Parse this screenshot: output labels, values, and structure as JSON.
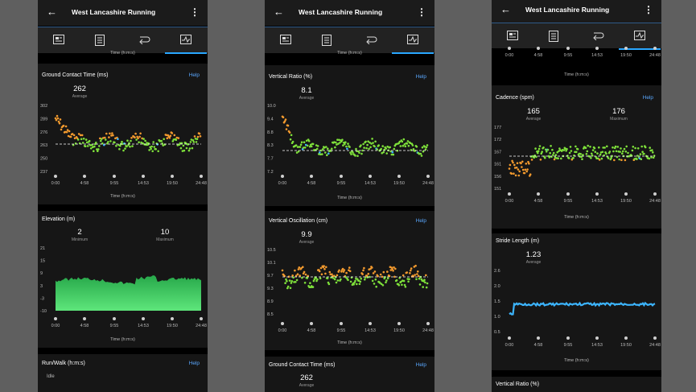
{
  "app": {
    "title": "West Lancashire Running",
    "back_icon": "back-arrow-icon",
    "more_icon": "more-vert-icon",
    "help_label": "Help",
    "tabs": [
      "tab-summary",
      "tab-splits",
      "tab-laps",
      "tab-charts"
    ],
    "accent": "#29a7ff"
  },
  "x_axis_label": "Time (h:m:s)",
  "x_ticks": [
    "0:00",
    "4:58",
    "9:55",
    "14:53",
    "19:50",
    "24:48"
  ],
  "phone1": {
    "ground_contact": {
      "title": "Ground Contact Time (ms)",
      "value": "262",
      "label": "Average",
      "y_ticks": [
        "302",
        "289",
        "276",
        "263",
        "250",
        "237"
      ]
    },
    "elevation": {
      "title": "Elevation (m)",
      "min_value": "2",
      "min_label": "Minimum",
      "max_value": "10",
      "max_label": "Maximum",
      "y_ticks": [
        "21",
        "15",
        "9",
        "3",
        "-3",
        "-10"
      ]
    },
    "run_walk": {
      "title": "Run/Walk (h:m:s)",
      "row_label": "Idle"
    }
  },
  "phone2": {
    "vertical_ratio": {
      "title": "Vertical Ratio (%)",
      "value": "8.1",
      "label": "Average",
      "y_ticks": [
        "10.0",
        "9.4",
        "8.8",
        "8.3",
        "7.7",
        "7.2"
      ]
    },
    "vertical_oscillation": {
      "title": "Vertical Oscillation (cm)",
      "value": "9.9",
      "label": "Average",
      "y_ticks": [
        "10.5",
        "10.1",
        "9.7",
        "9.3",
        "8.9",
        "8.5"
      ]
    },
    "ground_contact": {
      "title": "Ground Contact Time (ms)",
      "value": "262",
      "label": "Average"
    }
  },
  "phone3": {
    "cadence": {
      "title": "Cadence (spm)",
      "avg_value": "165",
      "avg_label": "Average",
      "max_value": "176",
      "max_label": "Maximum",
      "y_ticks": [
        "177",
        "172",
        "167",
        "161",
        "156",
        "151"
      ]
    },
    "stride": {
      "title": "Stride Length (m)",
      "value": "1.23",
      "label": "Average",
      "y_ticks": [
        "2.6",
        "2.0",
        "1.5",
        "1.0",
        "0.5"
      ]
    },
    "vertical_ratio": {
      "title": "Vertical Ratio (%)"
    }
  },
  "colors": {
    "green": "#7ee03a",
    "orange": "#f39a2e",
    "blue": "#3cb5ff",
    "elevation": "#35c45b"
  }
}
